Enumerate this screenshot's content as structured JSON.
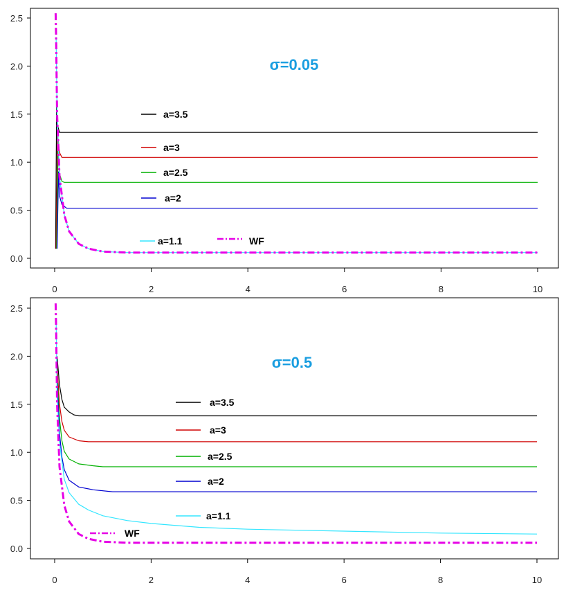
{
  "chart_data": [
    {
      "type": "line",
      "title": "σ=0.05",
      "title_color": "#1a9ee0",
      "xlabel": "",
      "ylabel": "",
      "xlim": [
        0,
        10
      ],
      "ylim": [
        0,
        2.5
      ],
      "x_ticks": [
        "0",
        "2",
        "4",
        "6",
        "8",
        "10"
      ],
      "y_ticks": [
        "0.0",
        "0.5",
        "1.0",
        "1.5",
        "2.0",
        "2.5"
      ],
      "grid": false,
      "series": [
        {
          "name": "a=3.5",
          "color": "#000000",
          "style": "solid",
          "plateau": 1.31,
          "x": [
            0.02,
            0.04,
            0.06,
            0.1,
            0.15,
            0.2,
            10
          ],
          "y": [
            0.1,
            1.58,
            1.38,
            1.31,
            1.31,
            1.31,
            1.31
          ]
        },
        {
          "name": "a=3",
          "color": "#d00000",
          "style": "solid",
          "plateau": 1.05,
          "x": [
            0.03,
            0.06,
            0.1,
            0.15,
            0.2,
            10
          ],
          "y": [
            0.1,
            1.3,
            1.1,
            1.05,
            1.05,
            1.05
          ]
        },
        {
          "name": "a=2.5",
          "color": "#00b000",
          "style": "solid",
          "plateau": 0.79,
          "x": [
            0.04,
            0.07,
            0.1,
            0.15,
            0.2,
            10
          ],
          "y": [
            0.1,
            1.15,
            0.88,
            0.8,
            0.79,
            0.79
          ]
        },
        {
          "name": "a=2",
          "color": "#0000d0",
          "style": "solid",
          "plateau": 0.52,
          "x": [
            0.05,
            0.08,
            0.1,
            0.15,
            0.25,
            10
          ],
          "y": [
            0.1,
            0.9,
            0.65,
            0.56,
            0.52,
            0.52
          ]
        },
        {
          "name": "a=1.1",
          "color": "#33e6ff",
          "style": "solid",
          "plateau": 0.06,
          "x": [
            0.03,
            0.05,
            0.1,
            0.2,
            0.3,
            0.5,
            0.7,
            1,
            1.5,
            10
          ],
          "y": [
            2.3,
            1.5,
            0.85,
            0.45,
            0.28,
            0.15,
            0.1,
            0.07,
            0.06,
            0.06
          ]
        },
        {
          "name": "WF",
          "color": "#e600e6",
          "style": "dashdot",
          "plateau": 0.06,
          "x": [
            0.02,
            0.03,
            0.05,
            0.1,
            0.2,
            0.3,
            0.5,
            0.7,
            1,
            1.5,
            10
          ],
          "y": [
            2.55,
            2.3,
            1.5,
            0.85,
            0.45,
            0.28,
            0.15,
            0.1,
            0.07,
            0.06,
            0.06
          ]
        }
      ]
    },
    {
      "type": "line",
      "title": "σ=0.5",
      "title_color": "#1a9ee0",
      "xlabel": "",
      "ylabel": "",
      "xlim": [
        0,
        10
      ],
      "ylim": [
        0,
        2.5
      ],
      "x_ticks": [
        "0",
        "2",
        "4",
        "6",
        "8",
        "10"
      ],
      "y_ticks": [
        "0.0",
        "0.5",
        "1.0",
        "1.5",
        "2.0",
        "2.5"
      ],
      "grid": false,
      "series": [
        {
          "name": "a=3.5",
          "color": "#000000",
          "style": "solid",
          "plateau": 1.38,
          "x": [
            0.05,
            0.1,
            0.15,
            0.2,
            0.3,
            0.4,
            0.5,
            10
          ],
          "y": [
            2.0,
            1.7,
            1.55,
            1.47,
            1.42,
            1.39,
            1.38,
            1.38
          ]
        },
        {
          "name": "a=3",
          "color": "#d00000",
          "style": "solid",
          "plateau": 1.11,
          "x": [
            0.05,
            0.1,
            0.15,
            0.2,
            0.3,
            0.5,
            0.7,
            10
          ],
          "y": [
            1.9,
            1.5,
            1.32,
            1.23,
            1.16,
            1.12,
            1.11,
            1.11
          ]
        },
        {
          "name": "a=2.5",
          "color": "#00b000",
          "style": "solid",
          "plateau": 0.85,
          "x": [
            0.05,
            0.1,
            0.15,
            0.2,
            0.3,
            0.5,
            0.8,
            1.0,
            10
          ],
          "y": [
            1.8,
            1.35,
            1.12,
            1.01,
            0.93,
            0.88,
            0.86,
            0.85,
            0.85
          ]
        },
        {
          "name": "a=2",
          "color": "#0000d0",
          "style": "solid",
          "plateau": 0.59,
          "x": [
            0.05,
            0.1,
            0.15,
            0.2,
            0.3,
            0.5,
            0.8,
            1.2,
            10
          ],
          "y": [
            1.75,
            1.2,
            0.95,
            0.82,
            0.71,
            0.64,
            0.61,
            0.59,
            0.59
          ]
        },
        {
          "name": "a=1.1",
          "color": "#33e6ff",
          "style": "solid",
          "plateau": 0.15,
          "x": [
            0.03,
            0.05,
            0.1,
            0.2,
            0.3,
            0.5,
            0.7,
            1,
            1.5,
            2,
            3,
            4,
            6,
            8,
            10
          ],
          "y": [
            2.4,
            1.6,
            1.1,
            0.72,
            0.58,
            0.46,
            0.4,
            0.34,
            0.29,
            0.26,
            0.22,
            0.2,
            0.18,
            0.16,
            0.15
          ]
        },
        {
          "name": "WF",
          "color": "#e600e6",
          "style": "dashdot",
          "plateau": 0.06,
          "x": [
            0.02,
            0.03,
            0.05,
            0.1,
            0.2,
            0.3,
            0.5,
            0.7,
            1,
            1.5,
            10
          ],
          "y": [
            2.55,
            2.3,
            1.5,
            0.85,
            0.45,
            0.28,
            0.15,
            0.1,
            0.07,
            0.06,
            0.06
          ]
        }
      ]
    }
  ]
}
